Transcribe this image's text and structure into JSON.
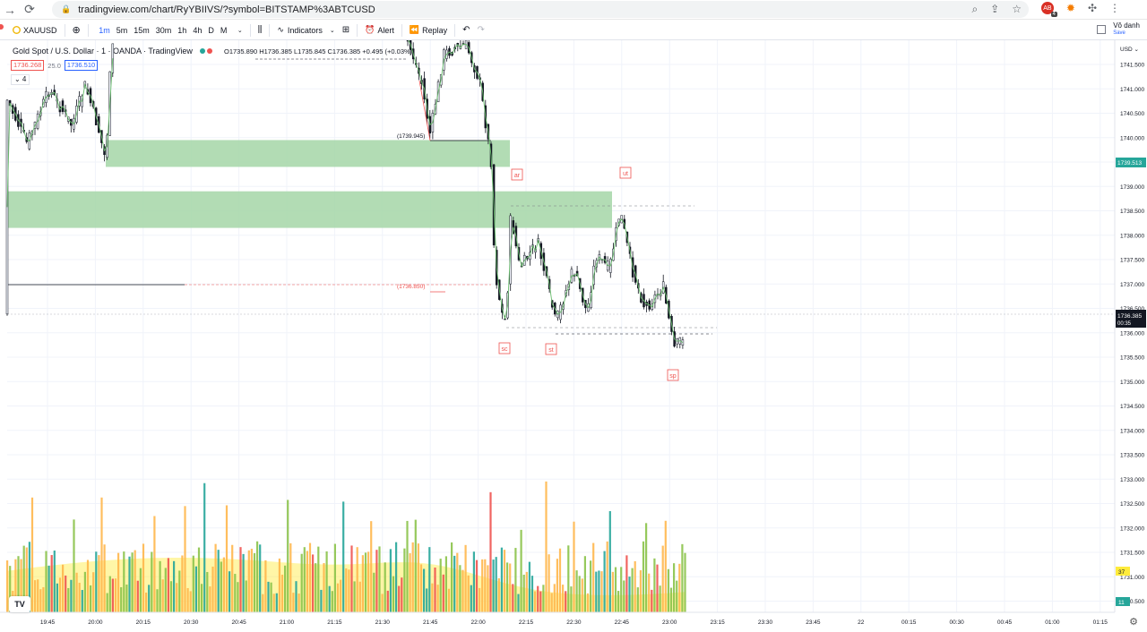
{
  "browser": {
    "url": "tradingview.com/chart/RyYBIIVS/?symbol=BITSTAMP%3ABTCUSD",
    "ext_badge": "4"
  },
  "toolbar": {
    "symbol": "XAUUSD",
    "timeframes": [
      "1m",
      "5m",
      "15m",
      "30m",
      "1h",
      "4h",
      "D",
      "M"
    ],
    "active_timeframe": "1m",
    "indicators_label": "Indicators",
    "alert_label": "Alert",
    "replay_label": "Replay",
    "user_name": "Vô danh",
    "save_label": "Save"
  },
  "legend": {
    "title": "Gold Spot / U.S. Dollar · 1 · OANDA · TradingView",
    "ohlc": "O1735.890 H1736.385 L1735.845 C1736.385 +0.495 (+0.03%)",
    "bid": "1736.268",
    "spread": "25.0",
    "ask": "1736.510",
    "collapse": "⌄ 4"
  },
  "chart_data": {
    "type": "candlestick",
    "currency_label": "USD",
    "price_ticks": [
      "1741.500",
      "1741.000",
      "1740.500",
      "1740.000",
      "1739.500",
      "1739.000",
      "1738.500",
      "1738.000",
      "1737.500",
      "1737.000",
      "1736.500",
      "1736.000",
      "1735.500",
      "1735.000",
      "1734.500",
      "1734.000",
      "1733.500",
      "1733.000",
      "1732.500",
      "1732.000",
      "1731.500",
      "1731.000",
      "1730.500"
    ],
    "time_ticks": [
      "19:45",
      "20:00",
      "20:15",
      "20:30",
      "20:45",
      "21:00",
      "21:15",
      "21:30",
      "21:45",
      "22:00",
      "22:15",
      "22:30",
      "22:45",
      "23:00",
      "23:15",
      "23:30",
      "23:45",
      "22",
      "00:15",
      "00:30",
      "00:45",
      "01:00",
      "01:15"
    ],
    "last_price": "1736.385",
    "countdown": "00:35",
    "high_marker": "1739.513",
    "annotations": [
      {
        "label": "ar"
      },
      {
        "label": "ut"
      },
      {
        "label": "sc"
      },
      {
        "label": "st"
      },
      {
        "label": "sp"
      }
    ],
    "price_notes": [
      "(1739.945)",
      "(1736.850)"
    ],
    "volume_badges": [
      "37",
      "11"
    ],
    "zones": [
      {
        "top": 1739.95,
        "bottom": 1739.4
      },
      {
        "top": 1738.9,
        "bottom": 1738.15
      }
    ]
  }
}
